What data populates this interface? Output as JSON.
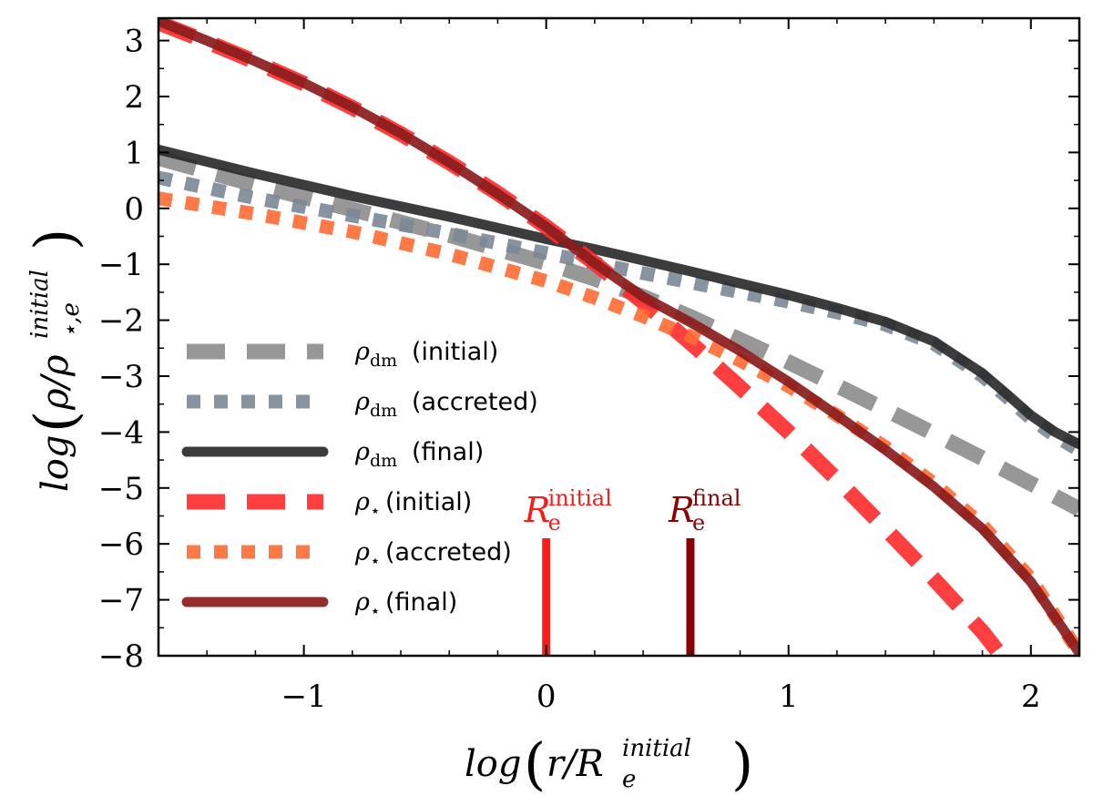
{
  "chart_data": {
    "type": "line",
    "title": "",
    "xlabel": "log (r/R_e^initial)",
    "ylabel": "log (ρ/ρ_⋆,e^initial)",
    "xlabel_parts": {
      "prefix": "log",
      "main": "r/R",
      "sub": "e",
      "sup": "initial"
    },
    "ylabel_parts": {
      "prefix": "log",
      "main": "ρ/ρ",
      "sub": "⋆,e",
      "sup": "initial"
    },
    "xlim": [
      -1.6,
      2.2
    ],
    "ylim": [
      -8,
      3.4
    ],
    "xticks": [
      -1,
      0,
      1,
      2
    ],
    "xtick_labels": [
      "−1",
      "0",
      "1",
      "2"
    ],
    "yticks": [
      -8,
      -7,
      -6,
      -5,
      -4,
      -3,
      -2,
      -1,
      0,
      1,
      2,
      3
    ],
    "ytick_labels": [
      "−8",
      "−7",
      "−6",
      "−5",
      "−4",
      "−3",
      "−2",
      "−1",
      "0",
      "1",
      "2",
      "3"
    ],
    "legend_position": "lower-left",
    "series": [
      {
        "name": "rho_dm_initial",
        "symbol": "ρ",
        "sub": "dm",
        "label": "(initial)",
        "color": "#8c8c8c",
        "style": "dashed",
        "x": [
          -1.6,
          -1.2,
          -0.8,
          -0.4,
          0.0,
          0.2,
          0.4,
          0.6,
          0.8,
          1.0,
          1.2,
          1.4,
          1.6,
          1.8,
          2.0,
          2.2
        ],
        "y": [
          0.9,
          0.42,
          -0.02,
          -0.48,
          -0.98,
          -1.26,
          -1.58,
          -1.95,
          -2.35,
          -2.75,
          -3.17,
          -3.6,
          -4.03,
          -4.47,
          -4.92,
          -5.38
        ]
      },
      {
        "name": "rho_dm_accreted",
        "symbol": "ρ",
        "sub": "dm",
        "label": "(accreted)",
        "color": "#7b8796",
        "style": "dotted",
        "x": [
          -1.6,
          -1.2,
          -0.8,
          -0.4,
          0.0,
          0.2,
          0.4,
          0.6,
          0.8,
          1.0,
          1.2,
          1.4,
          1.6,
          1.8,
          1.9,
          2.0,
          2.1,
          2.2
        ],
        "y": [
          0.55,
          0.18,
          -0.13,
          -0.45,
          -0.8,
          -0.98,
          -1.16,
          -1.33,
          -1.5,
          -1.67,
          -1.86,
          -2.08,
          -2.42,
          -3.0,
          -3.37,
          -3.76,
          -4.07,
          -4.33
        ]
      },
      {
        "name": "rho_dm_final",
        "symbol": "ρ",
        "sub": "dm",
        "label": "(final)",
        "color": "#2b2b2b",
        "style": "solid",
        "x": [
          -1.6,
          -1.2,
          -0.8,
          -0.4,
          0.0,
          0.2,
          0.4,
          0.6,
          0.8,
          1.0,
          1.2,
          1.4,
          1.6,
          1.8,
          1.9,
          2.0,
          2.1,
          2.2
        ],
        "y": [
          1.05,
          0.62,
          0.22,
          -0.15,
          -0.55,
          -0.73,
          -0.93,
          -1.13,
          -1.34,
          -1.55,
          -1.78,
          -2.03,
          -2.38,
          -2.95,
          -3.32,
          -3.7,
          -4.0,
          -4.22
        ]
      },
      {
        "name": "rho_star_initial",
        "symbol": "ρ",
        "sub": "⋆",
        "label": "(initial)",
        "color": "#ff2a2a",
        "style": "dashed",
        "x": [
          -1.6,
          -1.4,
          -1.2,
          -1.0,
          -0.8,
          -0.6,
          -0.4,
          -0.2,
          0.0,
          0.2,
          0.4,
          0.6,
          0.8,
          1.0,
          1.2,
          1.4,
          1.6,
          1.8,
          1.86
        ],
        "y": [
          3.32,
          2.98,
          2.62,
          2.23,
          1.8,
          1.33,
          0.82,
          0.27,
          -0.33,
          -0.98,
          -1.68,
          -2.42,
          -3.2,
          -4.0,
          -4.85,
          -5.73,
          -6.63,
          -7.57,
          -7.9
        ]
      },
      {
        "name": "rho_star_accreted",
        "symbol": "ρ",
        "sub": "⋆",
        "label": "(accreted)",
        "color": "#ff6a33",
        "style": "dotted",
        "x": [
          -1.6,
          -1.2,
          -0.8,
          -0.4,
          0.0,
          0.2,
          0.4,
          0.6,
          0.8,
          1.0,
          1.2,
          1.4,
          1.6,
          1.8,
          2.0,
          2.2
        ],
        "y": [
          0.18,
          -0.1,
          -0.42,
          -0.82,
          -1.3,
          -1.6,
          -1.93,
          -2.3,
          -2.72,
          -3.18,
          -3.7,
          -4.27,
          -4.92,
          -5.67,
          -6.62,
          -7.95
        ]
      },
      {
        "name": "rho_star_final",
        "symbol": "ρ",
        "sub": "⋆",
        "label": "(final)",
        "color": "#8b1c1c",
        "style": "solid",
        "x": [
          -1.6,
          -1.4,
          -1.2,
          -1.0,
          -0.8,
          -0.6,
          -0.4,
          -0.2,
          0.0,
          0.2,
          0.4,
          0.6,
          0.8,
          1.0,
          1.2,
          1.4,
          1.6,
          1.8,
          2.0,
          2.2
        ],
        "y": [
          3.35,
          3.0,
          2.63,
          2.24,
          1.81,
          1.34,
          0.82,
          0.26,
          -0.33,
          -0.98,
          -1.58,
          -2.05,
          -2.55,
          -3.1,
          -3.7,
          -4.32,
          -4.98,
          -5.73,
          -6.68,
          -7.95
        ]
      }
    ],
    "markers": [
      {
        "name": "Re_initial",
        "x": 0.0,
        "y_from": -8,
        "y_to": -5.9,
        "color": "#ff1a1a",
        "main": "R",
        "sub": "e",
        "sup": "initial"
      },
      {
        "name": "Re_final",
        "x": 0.595,
        "y_from": -8,
        "y_to": -5.9,
        "color": "#8b0000",
        "main": "R",
        "sub": "e",
        "sup": "final"
      }
    ]
  }
}
